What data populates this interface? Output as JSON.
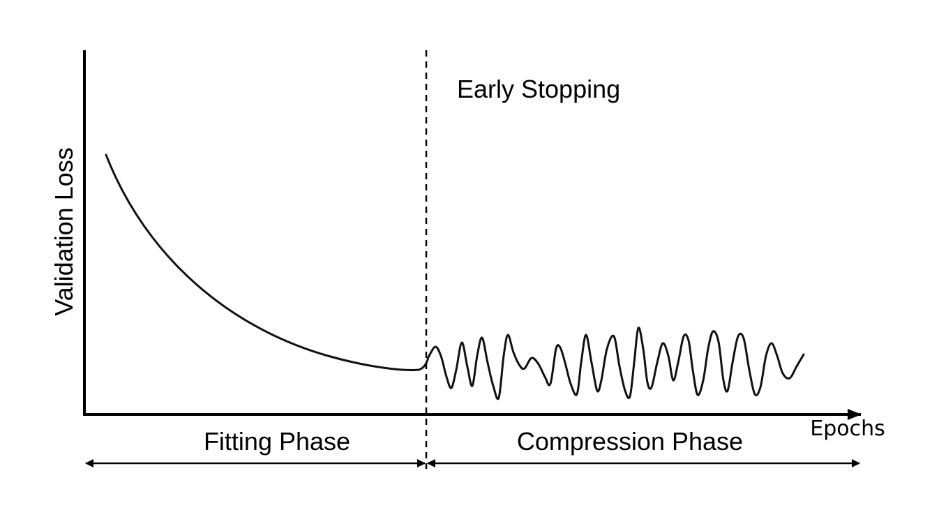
{
  "diagram": {
    "y_axis_label": "Validation Loss",
    "x_axis_label": "Epochs",
    "annotation": "Early Stopping",
    "phases": [
      {
        "label": "Fitting Phase"
      },
      {
        "label": "Compression Phase"
      }
    ],
    "curve_style": "smooth decay then oscillation",
    "line_color": "#000000"
  }
}
